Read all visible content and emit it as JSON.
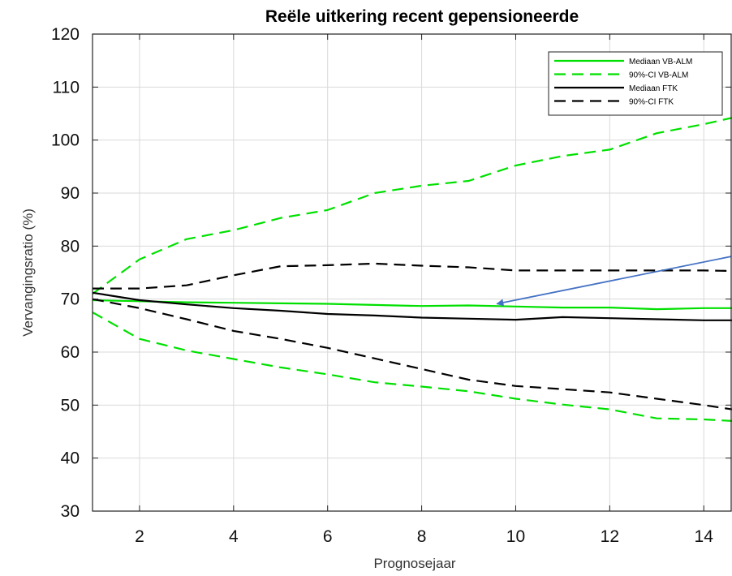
{
  "chart_data": {
    "type": "line",
    "title": "Reële uitkering recent gepensioneerde",
    "xlabel": "Prognosejaar",
    "ylabel": "Vervangingsratio (%)",
    "xlim": [
      1,
      14.6
    ],
    "ylim": [
      30,
      120
    ],
    "xticks": [
      2,
      4,
      6,
      8,
      10,
      12,
      14
    ],
    "yticks": [
      30,
      40,
      50,
      60,
      70,
      80,
      90,
      100,
      110,
      120
    ],
    "grid": true,
    "legend_position": "top-right",
    "series": [
      {
        "name": "Mediaan VB-ALM",
        "color": "#00e000",
        "dash": "solid",
        "x": [
          1,
          2,
          3,
          4,
          5,
          6,
          7,
          8,
          9,
          10,
          11,
          12,
          13,
          14,
          14.6
        ],
        "y": [
          69.8,
          69.6,
          69.4,
          69.3,
          69.2,
          69.1,
          68.9,
          68.7,
          68.8,
          68.6,
          68.4,
          68.4,
          68.1,
          68.3,
          68.3
        ]
      },
      {
        "name": "90%-CI VB-ALM",
        "color": "#00e000",
        "dash": "dashed",
        "x": [
          1,
          2,
          3,
          4,
          5,
          6,
          7,
          8,
          9,
          10,
          11,
          12,
          13,
          14,
          14.6
        ],
        "y": [
          71.0,
          77.5,
          81.3,
          83.0,
          85.3,
          86.8,
          90.0,
          91.4,
          92.3,
          95.2,
          97.0,
          98.2,
          101.3,
          103.0,
          104.2
        ]
      },
      {
        "name": "",
        "color": "#00e000",
        "dash": "dashed",
        "x": [
          1,
          2,
          3,
          4,
          5,
          6,
          7,
          8,
          9,
          10,
          11,
          12,
          13,
          14,
          14.6
        ],
        "y": [
          67.5,
          62.5,
          60.3,
          58.7,
          57.1,
          55.8,
          54.3,
          53.5,
          52.6,
          51.2,
          50.1,
          49.2,
          47.5,
          47.3,
          47.0
        ]
      },
      {
        "name": "Mediaan FTK",
        "color": "#000000",
        "dash": "solid",
        "x": [
          1,
          2,
          3,
          4,
          5,
          6,
          7,
          8,
          9,
          10,
          11,
          12,
          13,
          14,
          14.6
        ],
        "y": [
          71.2,
          69.8,
          69.0,
          68.3,
          67.8,
          67.2,
          66.9,
          66.5,
          66.3,
          66.1,
          66.6,
          66.4,
          66.2,
          66.0,
          66.0
        ]
      },
      {
        "name": "90%-CI FTK",
        "color": "#000000",
        "dash": "dashed",
        "x": [
          1,
          2,
          3,
          4,
          5,
          6,
          7,
          8,
          9,
          10,
          11,
          12,
          13,
          14,
          14.6
        ],
        "y": [
          72.0,
          72.0,
          72.6,
          74.5,
          76.2,
          76.4,
          76.7,
          76.3,
          76.0,
          75.4,
          75.4,
          75.4,
          75.4,
          75.4,
          75.3
        ]
      },
      {
        "name": "",
        "color": "#000000",
        "dash": "dashed",
        "x": [
          1,
          2,
          3,
          4,
          5,
          6,
          7,
          8,
          9,
          10,
          11,
          12,
          13,
          14,
          14.6
        ],
        "y": [
          70.0,
          68.3,
          66.2,
          64.0,
          62.5,
          60.8,
          58.8,
          56.8,
          54.8,
          53.6,
          53.0,
          52.4,
          51.2,
          50.0,
          49.2
        ]
      }
    ],
    "annotations": [
      {
        "type": "arrow",
        "color": "#4472c4",
        "from": [
          16.4,
          81.3
        ],
        "to": [
          9.6,
          69.1
        ]
      }
    ]
  }
}
